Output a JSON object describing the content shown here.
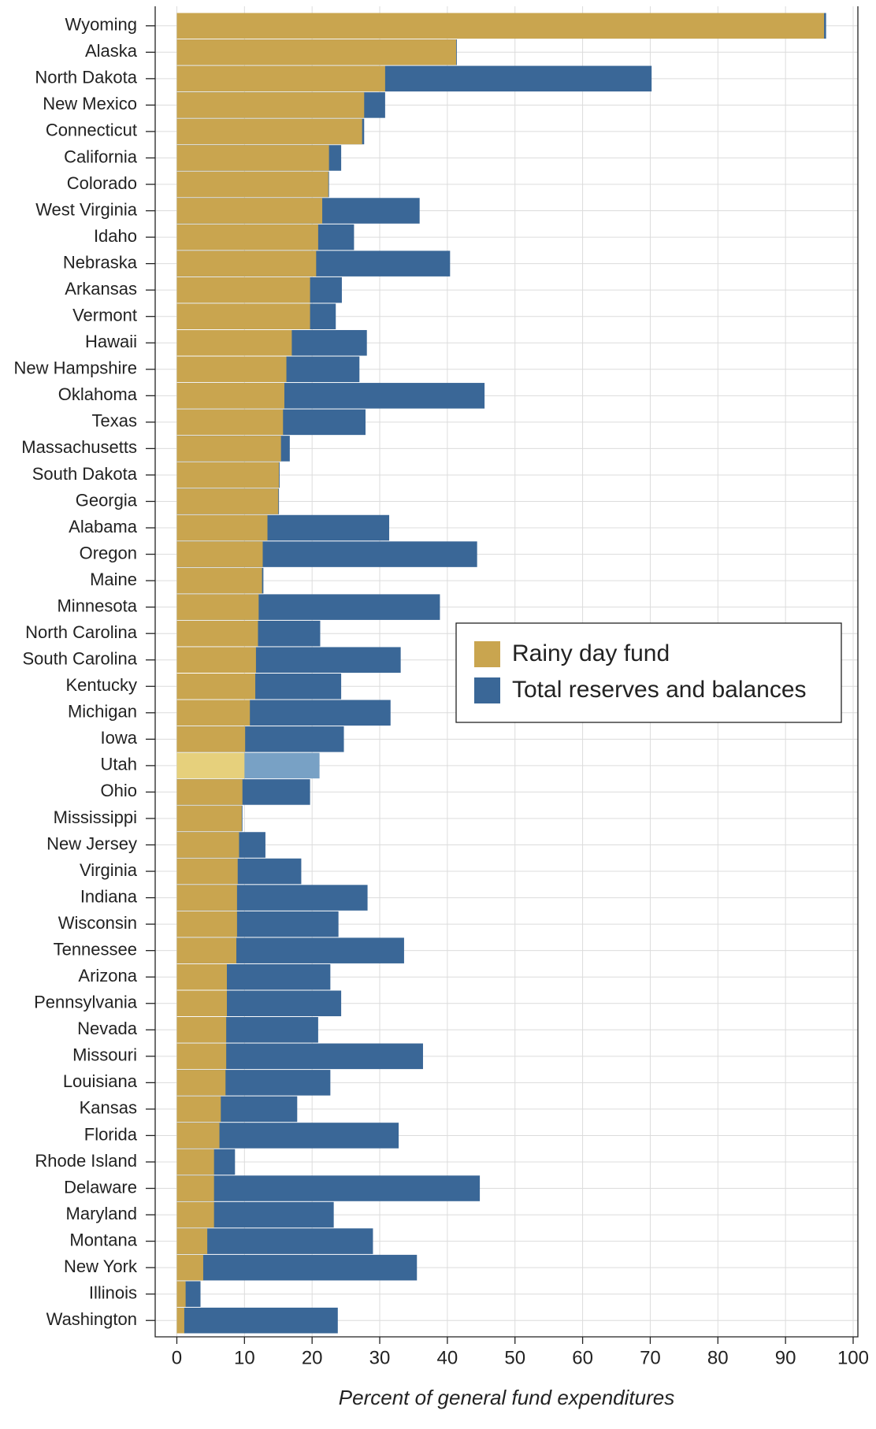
{
  "chart_data": {
    "type": "overlaid-bar",
    "orientation": "horizontal",
    "x_label": "Percent of general fund expenditures",
    "categories": [
      "Wyoming",
      "Alaska",
      "North Dakota",
      "New Mexico",
      "Connecticut",
      "California",
      "Colorado",
      "West Virginia",
      "Idaho",
      "Nebraska",
      "Arkansas",
      "Vermont",
      "Hawaii",
      "New Hampshire",
      "Oklahoma",
      "Texas",
      "Massachusetts",
      "South Dakota",
      "Georgia",
      "Alabama",
      "Oregon",
      "Maine",
      "Minnesota",
      "North Carolina",
      "South Carolina",
      "Kentucky",
      "Michigan",
      "Iowa",
      "Utah",
      "Ohio",
      "Mississippi",
      "New Jersey",
      "Virginia",
      "Indiana",
      "Wisconsin",
      "Tennessee",
      "Arizona",
      "Pennsylvania",
      "Nevada",
      "Missouri",
      "Louisiana",
      "Kansas",
      "Florida",
      "Rhode Island",
      "Delaware",
      "Maryland",
      "Montana",
      "New York",
      "Illinois",
      "Washington"
    ],
    "series": [
      {
        "name": "Rainy day fund",
        "color": "#c9a54f",
        "highlight_color": "#e6d07c",
        "values": [
          95.7,
          41.3,
          30.8,
          27.7,
          27.4,
          22.5,
          22.4,
          21.5,
          20.9,
          20.6,
          19.7,
          19.7,
          17.0,
          16.2,
          15.9,
          15.7,
          15.4,
          15.1,
          15.0,
          13.4,
          12.7,
          12.6,
          12.1,
          12.0,
          11.7,
          11.6,
          10.8,
          10.1,
          10.0,
          9.7,
          9.6,
          9.2,
          9.0,
          8.9,
          8.9,
          8.8,
          7.4,
          7.4,
          7.3,
          7.3,
          7.2,
          6.5,
          6.3,
          5.5,
          5.5,
          5.5,
          4.5,
          3.9,
          1.3,
          1.1
        ]
      },
      {
        "name": "Total reserves and balances",
        "color": "#3a6797",
        "highlight_color": "#78a1c5",
        "values": [
          96.0,
          41.4,
          70.2,
          30.8,
          27.7,
          24.3,
          22.5,
          35.9,
          26.2,
          40.4,
          24.4,
          23.5,
          28.1,
          27.0,
          45.5,
          27.9,
          16.7,
          15.2,
          15.1,
          31.4,
          44.4,
          12.8,
          38.9,
          21.2,
          33.1,
          24.3,
          31.6,
          24.7,
          21.1,
          19.7,
          9.7,
          13.1,
          18.4,
          28.2,
          23.9,
          33.6,
          22.7,
          24.3,
          20.9,
          36.4,
          22.7,
          17.8,
          32.8,
          8.6,
          44.8,
          23.2,
          29.0,
          35.5,
          3.5,
          23.8
        ]
      }
    ],
    "highlight": "Utah",
    "xlim": [
      -3.2,
      100.7
    ],
    "xticks": [
      0,
      10,
      20,
      30,
      40,
      50,
      60,
      70,
      80,
      90,
      100
    ],
    "grid": true,
    "legend": "right"
  }
}
